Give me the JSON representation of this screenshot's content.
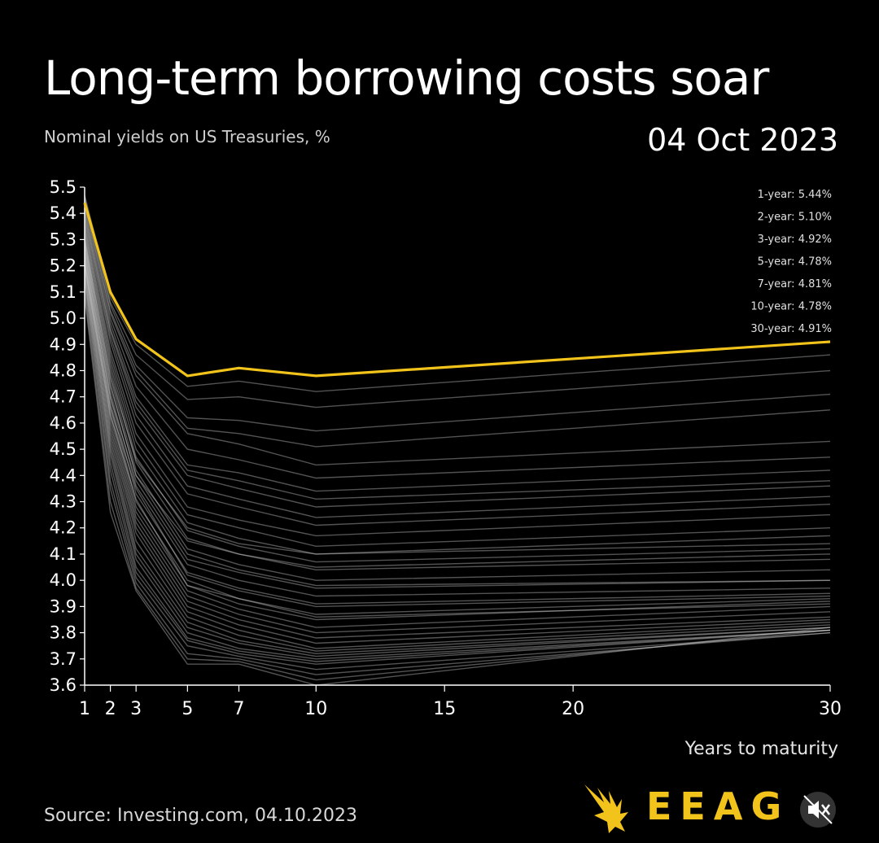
{
  "header": {
    "title": "Long-term borrowing costs soar",
    "subtitle": "Nominal yields on US Treasuries, %",
    "date": "04 Oct 2023"
  },
  "footer": {
    "source": "Source: Investing.com, 04.10.2023",
    "logo_text": "EEAG",
    "logo_icon": "eagle-icon",
    "mute_icon": "speaker-muted-icon"
  },
  "colors": {
    "background": "#000000",
    "highlight": "#f2c31a",
    "history_lines": "#d9d9d9",
    "axis": "#ffffff"
  },
  "chart_data": {
    "type": "line",
    "title": "Long-term borrowing costs soar",
    "subtitle": "Nominal yields on US Treasuries, %",
    "xlabel": "Years to maturity",
    "ylabel": "",
    "x": [
      1,
      2,
      3,
      5,
      7,
      10,
      30
    ],
    "xticks": [
      1,
      2,
      3,
      5,
      7,
      10,
      15,
      20,
      30
    ],
    "yticks": [
      "3.6",
      "3.7",
      "3.8",
      "3.9",
      "4.0",
      "4.1",
      "4.2",
      "4.3",
      "4.4",
      "4.5",
      "4.6",
      "4.7",
      "4.8",
      "4.9",
      "5.0",
      "5.1",
      "5.2",
      "5.3",
      "5.4",
      "5.5"
    ],
    "xlim": [
      1,
      30
    ],
    "ylim": [
      3.6,
      5.5
    ],
    "grid": false,
    "highlight": {
      "name": "04 Oct 2023",
      "values": [
        5.44,
        5.1,
        4.92,
        4.78,
        4.81,
        4.78,
        4.91
      ]
    },
    "legend_labels": [
      "1-year: 5.44%",
      "2-year: 5.10%",
      "3-year: 4.92%",
      "5-year: 4.78%",
      "7-year: 4.81%",
      "10-year: 4.78%",
      "30-year: 4.91%"
    ],
    "legend_position": "top-right",
    "history": [
      [
        5.47,
        5.08,
        4.9,
        4.74,
        4.76,
        4.72,
        4.86
      ],
      [
        5.46,
        5.06,
        4.86,
        4.69,
        4.7,
        4.66,
        4.8
      ],
      [
        5.45,
        5.05,
        4.82,
        4.62,
        4.61,
        4.57,
        4.71
      ],
      [
        5.44,
        5.03,
        4.8,
        4.58,
        4.56,
        4.51,
        4.65
      ],
      [
        5.43,
        5.02,
        4.78,
        4.56,
        4.52,
        4.44,
        4.53
      ],
      [
        5.42,
        5.0,
        4.74,
        4.5,
        4.46,
        4.39,
        4.47
      ],
      [
        5.41,
        4.98,
        4.7,
        4.44,
        4.41,
        4.34,
        4.42
      ],
      [
        5.4,
        4.96,
        4.68,
        4.42,
        4.38,
        4.31,
        4.38
      ],
      [
        5.39,
        4.95,
        4.66,
        4.4,
        4.35,
        4.28,
        4.36
      ],
      [
        5.38,
        4.93,
        4.63,
        4.36,
        4.31,
        4.24,
        4.32
      ],
      [
        5.37,
        4.91,
        4.6,
        4.33,
        4.28,
        4.21,
        4.29
      ],
      [
        5.36,
        4.88,
        4.56,
        4.28,
        4.23,
        4.17,
        4.25
      ],
      [
        5.35,
        4.86,
        4.53,
        4.25,
        4.2,
        4.13,
        4.2
      ],
      [
        5.34,
        4.84,
        4.5,
        4.22,
        4.16,
        4.1,
        4.17
      ],
      [
        5.33,
        4.82,
        4.47,
        4.19,
        4.13,
        4.07,
        4.12
      ],
      [
        5.32,
        4.8,
        4.45,
        4.16,
        4.1,
        4.04,
        4.08
      ],
      [
        5.31,
        4.77,
        4.42,
        4.12,
        4.06,
        4.0,
        4.04
      ],
      [
        5.3,
        4.75,
        4.4,
        4.1,
        4.04,
        3.98,
        4.0
      ],
      [
        5.29,
        4.72,
        4.36,
        4.06,
        4.0,
        3.94,
        3.97
      ],
      [
        5.28,
        4.7,
        4.33,
        4.03,
        3.97,
        3.91,
        3.95
      ],
      [
        5.27,
        4.68,
        4.3,
        4.0,
        3.93,
        3.87,
        3.93
      ],
      [
        5.26,
        4.66,
        4.28,
        3.98,
        3.91,
        3.85,
        3.92
      ],
      [
        5.25,
        4.64,
        4.26,
        3.96,
        3.89,
        3.82,
        3.9
      ],
      [
        5.24,
        4.62,
        4.24,
        3.94,
        3.87,
        3.8,
        3.88
      ],
      [
        5.23,
        4.6,
        4.22,
        3.92,
        3.85,
        3.78,
        3.86
      ],
      [
        5.22,
        4.58,
        4.2,
        3.9,
        3.83,
        3.76,
        3.85
      ],
      [
        5.21,
        4.56,
        4.18,
        3.88,
        3.81,
        3.74,
        3.84
      ],
      [
        5.2,
        4.54,
        4.15,
        3.86,
        3.79,
        3.73,
        3.83
      ],
      [
        5.19,
        4.52,
        4.12,
        3.84,
        3.77,
        3.72,
        3.82
      ],
      [
        5.18,
        4.5,
        4.1,
        3.82,
        3.76,
        3.71,
        3.82
      ],
      [
        5.17,
        4.48,
        4.08,
        3.8,
        3.74,
        3.7,
        3.81
      ],
      [
        5.16,
        4.45,
        4.05,
        3.78,
        3.73,
        3.69,
        3.81
      ],
      [
        5.15,
        4.42,
        4.03,
        3.77,
        3.72,
        3.68,
        3.81
      ],
      [
        5.14,
        4.38,
        4.01,
        3.75,
        3.71,
        3.66,
        3.8
      ],
      [
        5.12,
        4.35,
        3.99,
        3.72,
        3.7,
        3.64,
        3.8
      ],
      [
        5.1,
        4.3,
        3.97,
        3.7,
        3.69,
        3.62,
        3.81
      ],
      [
        5.08,
        4.26,
        3.96,
        3.68,
        3.68,
        3.6,
        3.82
      ],
      [
        5.3,
        4.78,
        4.46,
        4.2,
        4.14,
        4.1,
        4.14
      ],
      [
        5.28,
        4.74,
        4.4,
        4.15,
        4.1,
        4.05,
        4.1
      ],
      [
        5.25,
        4.7,
        4.38,
        4.08,
        4.03,
        3.97,
        4.0
      ],
      [
        5.22,
        4.66,
        4.35,
        4.02,
        3.96,
        3.9,
        3.94
      ],
      [
        5.2,
        4.63,
        4.31,
        3.98,
        3.93,
        3.86,
        3.91
      ]
    ]
  }
}
